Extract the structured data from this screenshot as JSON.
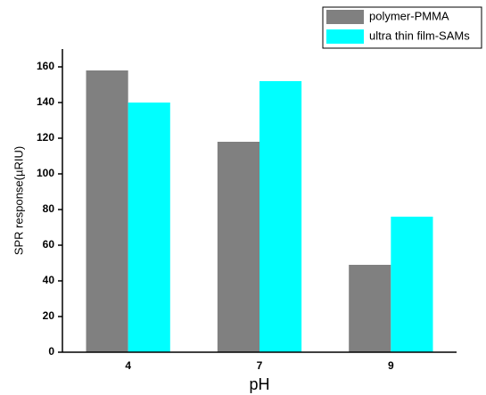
{
  "chart_data": {
    "type": "bar",
    "x_label": "pH",
    "y_label": "SPR response(µRIU)",
    "categories": [
      "4",
      "7",
      "9"
    ],
    "series": [
      {
        "name": "polymer-PMMA",
        "color": "#808080",
        "values": [
          158,
          118,
          49
        ]
      },
      {
        "name": "ultra thin film-SAMs",
        "color": "#00ffff",
        "values": [
          140,
          152,
          76
        ]
      }
    ],
    "ylim": [
      0,
      170
    ],
    "yticks": [
      0,
      20,
      40,
      60,
      80,
      100,
      120,
      140,
      160
    ],
    "legend": "top-right"
  }
}
